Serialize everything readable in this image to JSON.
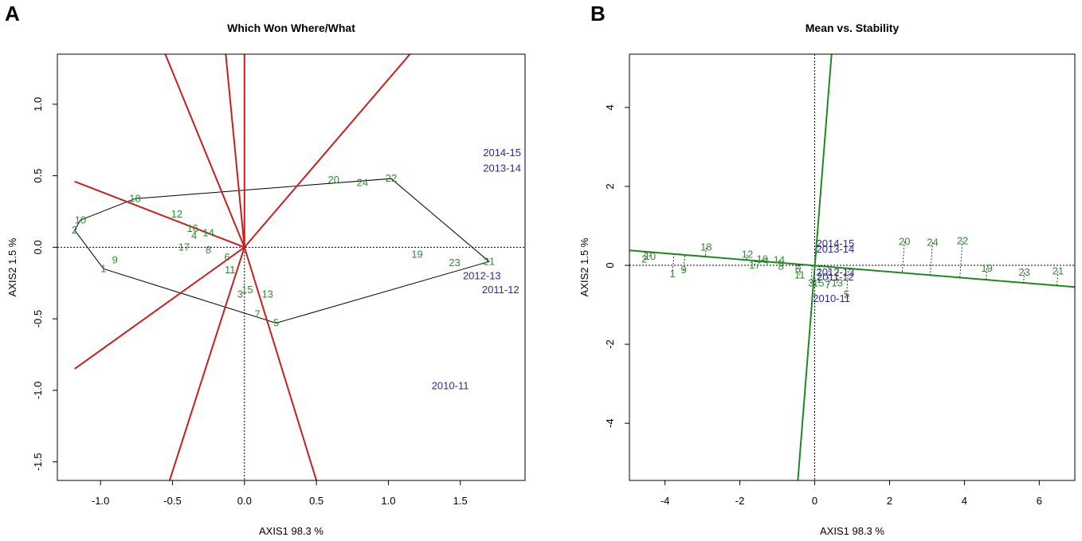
{
  "panel_labels": [
    "A",
    "B"
  ],
  "colors": {
    "genotype": "#2e8b2e",
    "environment": "#2a2aa0",
    "ray": "#c81e1e",
    "atc": "#1e8a1e",
    "frame": "#000000"
  },
  "chart_data": [
    {
      "type": "scatter",
      "title": "Which Won Where/What",
      "xlabel": "AXIS1 98.3 %",
      "ylabel": "AXIS2 1.5 %",
      "xlim": [
        -1.3,
        1.95
      ],
      "ylim": [
        -1.63,
        1.35
      ],
      "xticks": [
        -1.0,
        -0.5,
        0.0,
        0.5,
        1.0,
        1.5
      ],
      "xtick_labels": [
        "-1.0",
        "-0.5",
        "0.0",
        "0.5",
        "1.0",
        "1.5"
      ],
      "yticks": [
        -1.5,
        -1.0,
        -0.5,
        0.0,
        0.5,
        1.0
      ],
      "ytick_labels": [
        "-1.5",
        "-1.0",
        "-0.5",
        "0.0",
        "0.5",
        "1.0"
      ],
      "genotypes": [
        {
          "label": "1",
          "x": -0.98,
          "y": -0.15
        },
        {
          "label": "2",
          "x": -1.18,
          "y": 0.12
        },
        {
          "label": "3",
          "x": -0.03,
          "y": -0.33
        },
        {
          "label": "4",
          "x": -0.35,
          "y": 0.08
        },
        {
          "label": "5",
          "x": 0.22,
          "y": -0.53
        },
        {
          "label": "6",
          "x": -0.12,
          "y": -0.07
        },
        {
          "label": "7",
          "x": 0.09,
          "y": -0.47
        },
        {
          "label": "8",
          "x": -0.25,
          "y": -0.02
        },
        {
          "label": "9",
          "x": -0.9,
          "y": -0.09
        },
        {
          "label": "10",
          "x": -1.14,
          "y": 0.19
        },
        {
          "label": "11",
          "x": -0.1,
          "y": -0.16
        },
        {
          "label": "12",
          "x": -0.47,
          "y": 0.23
        },
        {
          "label": "13",
          "x": 0.16,
          "y": -0.33
        },
        {
          "label": "14",
          "x": -0.25,
          "y": 0.1
        },
        {
          "label": "15",
          "x": 0.02,
          "y": -0.3
        },
        {
          "label": "16",
          "x": -0.36,
          "y": 0.13
        },
        {
          "label": "17",
          "x": -0.42,
          "y": 0.0
        },
        {
          "label": "18",
          "x": -0.76,
          "y": 0.34
        },
        {
          "label": "19",
          "x": 1.2,
          "y": -0.05
        },
        {
          "label": "20",
          "x": 0.62,
          "y": 0.47
        },
        {
          "label": "21",
          "x": 1.7,
          "y": -0.1
        },
        {
          "label": "22",
          "x": 1.02,
          "y": 0.48
        },
        {
          "label": "23",
          "x": 1.46,
          "y": -0.11
        },
        {
          "label": "24",
          "x": 0.82,
          "y": 0.45
        }
      ],
      "environments": [
        {
          "label": "2014-15",
          "x": 1.79,
          "y": 0.66
        },
        {
          "label": "2013-14",
          "x": 1.79,
          "y": 0.55
        },
        {
          "label": "2012-13",
          "x": 1.65,
          "y": -0.2
        },
        {
          "label": "2011-12",
          "x": 1.78,
          "y": -0.3
        },
        {
          "label": "2010-11",
          "x": 1.43,
          "y": -0.97
        }
      ],
      "hull": [
        [
          -1.18,
          0.12
        ],
        [
          -1.14,
          0.19
        ],
        [
          -0.76,
          0.34
        ],
        [
          1.02,
          0.48
        ],
        [
          1.7,
          -0.1
        ],
        [
          0.22,
          -0.53
        ],
        [
          -0.98,
          -0.15
        ]
      ],
      "rays_end": [
        [
          -0.55,
          1.35
        ],
        [
          -0.13,
          1.35
        ],
        [
          0.0,
          1.35
        ],
        [
          1.15,
          1.35
        ],
        [
          -1.18,
          0.46
        ],
        [
          -1.18,
          -0.85
        ],
        [
          -0.52,
          -1.63
        ],
        [
          0.5,
          -1.63
        ]
      ]
    },
    {
      "type": "scatter",
      "title": "Mean vs. Stability",
      "xlabel": "AXIS1 98.3 %",
      "ylabel": "AXIS2 1.5 %",
      "xlim": [
        -4.95,
        6.95
      ],
      "ylim": [
        -5.45,
        5.35
      ],
      "xticks": [
        -4,
        -2,
        0,
        2,
        4,
        6
      ],
      "xtick_labels": [
        "-4",
        "-2",
        "0",
        "2",
        "4",
        "6"
      ],
      "yticks": [
        -4,
        -2,
        0,
        2,
        4
      ],
      "ytick_labels": [
        "-4",
        "-2",
        "0",
        "2",
        "4"
      ],
      "genotypes": [
        {
          "label": "1",
          "x": -3.8,
          "y": -0.22
        },
        {
          "label": "2",
          "x": -4.55,
          "y": 0.15
        },
        {
          "label": "3",
          "x": -0.1,
          "y": -0.45
        },
        {
          "label": "4",
          "x": -1.3,
          "y": 0.1
        },
        {
          "label": "5",
          "x": 0.85,
          "y": -0.75
        },
        {
          "label": "6",
          "x": -0.45,
          "y": -0.1
        },
        {
          "label": "7",
          "x": 0.35,
          "y": -0.5
        },
        {
          "label": "8",
          "x": -0.9,
          "y": -0.03
        },
        {
          "label": "9",
          "x": -3.5,
          "y": -0.12
        },
        {
          "label": "10",
          "x": -4.4,
          "y": 0.22
        },
        {
          "label": "11",
          "x": -0.4,
          "y": -0.25
        },
        {
          "label": "12",
          "x": -1.8,
          "y": 0.27
        },
        {
          "label": "13",
          "x": 0.6,
          "y": -0.45
        },
        {
          "label": "14",
          "x": -0.95,
          "y": 0.13
        },
        {
          "label": "15",
          "x": 0.1,
          "y": -0.45
        },
        {
          "label": "16",
          "x": -1.4,
          "y": 0.15
        },
        {
          "label": "17",
          "x": -1.6,
          "y": 0.0
        },
        {
          "label": "18",
          "x": -2.9,
          "y": 0.45
        },
        {
          "label": "19",
          "x": 4.6,
          "y": -0.08
        },
        {
          "label": "20",
          "x": 2.4,
          "y": 0.6
        },
        {
          "label": "21",
          "x": 6.5,
          "y": -0.15
        },
        {
          "label": "22",
          "x": 3.95,
          "y": 0.62
        },
        {
          "label": "23",
          "x": 5.6,
          "y": -0.18
        },
        {
          "label": "24",
          "x": 3.15,
          "y": 0.58
        }
      ],
      "environments": [
        {
          "label": "2014-15",
          "x": 0.55,
          "y": 0.55
        },
        {
          "label": "2013-14",
          "x": 0.55,
          "y": 0.4
        },
        {
          "label": "2012-13",
          "x": 0.55,
          "y": -0.18
        },
        {
          "label": "2011-12",
          "x": 0.55,
          "y": -0.3
        },
        {
          "label": "2010-11",
          "x": 0.45,
          "y": -0.85
        }
      ],
      "atc_axis": [
        [
          -4.95,
          0.38
        ],
        [
          6.95,
          -0.55
        ]
      ],
      "atc_ortho": [
        [
          -0.45,
          -5.45
        ],
        [
          0.45,
          5.35
        ]
      ]
    }
  ]
}
